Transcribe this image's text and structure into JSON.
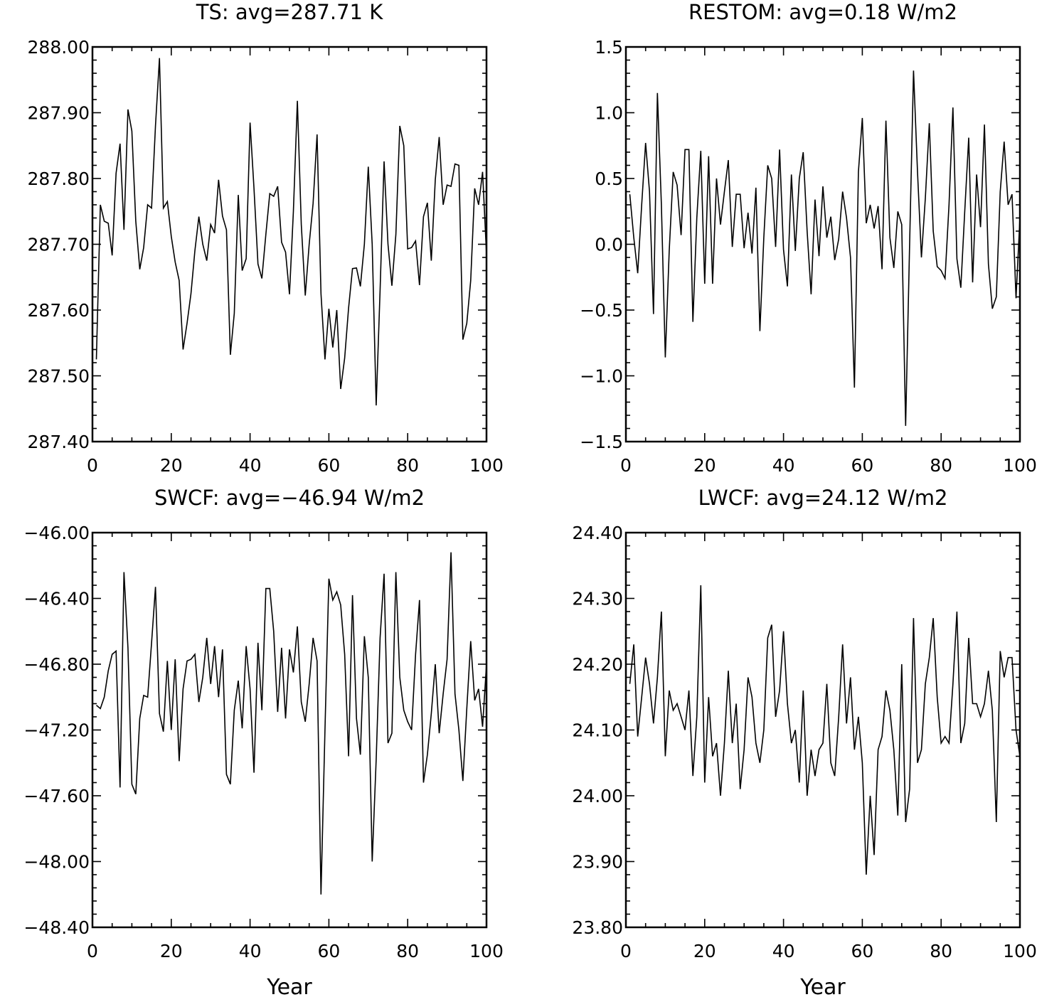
{
  "chart_data": [
    {
      "type": "line",
      "title": "TS: avg=287.71 K",
      "xlabel": "",
      "ylabel": "",
      "xlim": [
        0,
        100
      ],
      "ylim": [
        287.4,
        288.0
      ],
      "xticks": [
        "0",
        "20",
        "40",
        "60",
        "80",
        "100"
      ],
      "yticks": [
        "287.40",
        "287.50",
        "287.60",
        "287.70",
        "287.80",
        "287.90",
        "288.00"
      ],
      "grid": false,
      "line_color": "#000000",
      "x_start": 1,
      "values": [
        287.525,
        287.76,
        287.735,
        287.732,
        287.683,
        287.808,
        287.853,
        287.722,
        287.905,
        287.872,
        287.735,
        287.662,
        287.695,
        287.76,
        287.755,
        287.88,
        287.983,
        287.755,
        287.765,
        287.712,
        287.673,
        287.645,
        287.54,
        287.58,
        287.625,
        287.69,
        287.742,
        287.7,
        287.675,
        287.73,
        287.717,
        287.798,
        287.743,
        287.722,
        287.532,
        287.595,
        287.775,
        287.66,
        287.678,
        287.885,
        287.785,
        287.67,
        287.648,
        287.715,
        287.777,
        287.773,
        287.788,
        287.703,
        287.688,
        287.624,
        287.75,
        287.918,
        287.73,
        287.622,
        287.7,
        287.762,
        287.867,
        287.625,
        287.525,
        287.602,
        287.543,
        287.6,
        287.48,
        287.527,
        287.603,
        287.663,
        287.664,
        287.636,
        287.7,
        287.818,
        287.7,
        287.455,
        287.63,
        287.826,
        287.7,
        287.637,
        287.715,
        287.88,
        287.85,
        287.693,
        287.695,
        287.705,
        287.638,
        287.742,
        287.763,
        287.675,
        287.798,
        287.863,
        287.76,
        287.79,
        287.788,
        287.822,
        287.82,
        287.555,
        287.58,
        287.645,
        287.785,
        287.76,
        287.81,
        287.685
      ]
    },
    {
      "type": "line",
      "title": "RESTOM: avg=0.18 W/m2",
      "xlabel": "",
      "ylabel": "",
      "xlim": [
        0,
        100
      ],
      "ylim": [
        -1.5,
        1.5
      ],
      "xticks": [
        "0",
        "20",
        "40",
        "60",
        "80",
        "100"
      ],
      "yticks": [
        "−1.5",
        "−1.0",
        "−0.5",
        "0.0",
        "0.5",
        "1.0",
        "1.5"
      ],
      "grid": false,
      "line_color": "#000000",
      "x_start": 1,
      "values": [
        0.38,
        0.05,
        -0.22,
        0.3,
        0.77,
        0.4,
        -0.53,
        1.15,
        0.3,
        -0.86,
        -0.05,
        0.55,
        0.45,
        0.07,
        0.72,
        0.72,
        -0.59,
        0.2,
        0.71,
        -0.3,
        0.67,
        -0.3,
        0.5,
        0.15,
        0.4,
        0.64,
        -0.02,
        0.38,
        0.38,
        -0.03,
        0.24,
        -0.07,
        0.43,
        -0.66,
        0.05,
        0.6,
        0.5,
        -0.02,
        0.72,
        -0.04,
        -0.32,
        0.53,
        -0.05,
        0.5,
        0.7,
        0.1,
        -0.38,
        0.34,
        -0.09,
        0.44,
        0.05,
        0.21,
        -0.12,
        0.04,
        0.4,
        0.2,
        -0.1,
        -1.09,
        0.55,
        0.96,
        0.16,
        0.3,
        0.12,
        0.29,
        -0.19,
        0.94,
        0.05,
        -0.18,
        0.25,
        0.15,
        -1.38,
        0.0,
        1.32,
        0.55,
        -0.1,
        0.35,
        0.92,
        0.1,
        -0.17,
        -0.2,
        -0.26,
        0.3,
        1.04,
        -0.11,
        -0.33,
        0.25,
        0.81,
        -0.29,
        0.53,
        0.13,
        0.91,
        -0.15,
        -0.49,
        -0.4,
        0.4,
        0.78,
        0.3,
        0.38,
        -0.41,
        0.2
      ]
    },
    {
      "type": "line",
      "title": "SWCF: avg=−46.94 W/m2",
      "xlabel": "Year",
      "ylabel": "",
      "xlim": [
        0,
        100
      ],
      "ylim": [
        -48.4,
        -46.0
      ],
      "xticks": [
        "0",
        "20",
        "40",
        "60",
        "80",
        "100"
      ],
      "yticks": [
        "−48.40",
        "−48.00",
        "−47.60",
        "−47.20",
        "−46.80",
        "−46.40",
        "−46.00"
      ],
      "grid": false,
      "line_color": "#000000",
      "x_start": 1,
      "values": [
        -47.05,
        -47.07,
        -47.0,
        -46.84,
        -46.74,
        -46.72,
        -47.55,
        -46.24,
        -46.7,
        -47.53,
        -47.59,
        -47.13,
        -46.99,
        -47.0,
        -46.67,
        -46.33,
        -47.1,
        -47.21,
        -46.78,
        -47.2,
        -46.77,
        -47.39,
        -46.95,
        -46.78,
        -46.77,
        -46.74,
        -47.03,
        -46.88,
        -46.64,
        -46.92,
        -46.69,
        -47.0,
        -46.71,
        -47.47,
        -47.53,
        -47.08,
        -46.9,
        -47.19,
        -46.69,
        -46.95,
        -47.46,
        -46.67,
        -47.08,
        -46.34,
        -46.34,
        -46.6,
        -47.09,
        -46.7,
        -47.13,
        -46.71,
        -46.85,
        -46.57,
        -47.03,
        -47.15,
        -46.92,
        -46.64,
        -46.78,
        -48.2,
        -47.2,
        -46.28,
        -46.41,
        -46.36,
        -46.44,
        -46.74,
        -47.36,
        -46.38,
        -47.13,
        -47.35,
        -46.63,
        -46.88,
        -48.0,
        -47.38,
        -46.64,
        -46.25,
        -47.28,
        -47.22,
        -46.24,
        -46.88,
        -47.08,
        -47.15,
        -47.2,
        -46.74,
        -46.41,
        -47.52,
        -47.35,
        -47.1,
        -46.8,
        -47.22,
        -46.98,
        -46.77,
        -46.12,
        -46.98,
        -47.2,
        -47.51,
        -47.07,
        -46.66,
        -47.02,
        -46.95,
        -47.18,
        -46.8
      ]
    },
    {
      "type": "line",
      "title": "LWCF: avg=24.12 W/m2",
      "xlabel": "Year",
      "ylabel": "",
      "xlim": [
        0,
        100
      ],
      "ylim": [
        23.8,
        24.4
      ],
      "xticks": [
        "0",
        "20",
        "40",
        "60",
        "80",
        "100"
      ],
      "yticks": [
        "23.80",
        "23.90",
        "24.00",
        "24.10",
        "24.20",
        "24.30",
        "24.40"
      ],
      "grid": false,
      "line_color": "#000000",
      "x_start": 1,
      "values": [
        24.17,
        24.23,
        24.09,
        24.15,
        24.21,
        24.17,
        24.11,
        24.18,
        24.28,
        24.06,
        24.16,
        24.13,
        24.14,
        24.12,
        24.1,
        24.16,
        24.03,
        24.12,
        24.32,
        24.02,
        24.15,
        24.06,
        24.08,
        24.0,
        24.08,
        24.19,
        24.08,
        24.14,
        24.01,
        24.07,
        24.18,
        24.15,
        24.08,
        24.05,
        24.1,
        24.24,
        24.26,
        24.12,
        24.16,
        24.25,
        24.14,
        24.08,
        24.1,
        24.02,
        24.16,
        24.0,
        24.07,
        24.03,
        24.07,
        24.08,
        24.17,
        24.05,
        24.03,
        24.12,
        24.23,
        24.11,
        24.18,
        24.07,
        24.12,
        24.05,
        23.88,
        24.0,
        23.91,
        24.07,
        24.09,
        24.16,
        24.13,
        24.07,
        23.97,
        24.2,
        23.96,
        24.01,
        24.27,
        24.05,
        24.07,
        24.17,
        24.21,
        24.27,
        24.15,
        24.08,
        24.09,
        24.08,
        24.17,
        24.28,
        24.08,
        24.11,
        24.24,
        24.14,
        24.14,
        24.12,
        24.14,
        24.19,
        24.13,
        23.96,
        24.22,
        24.18,
        24.21,
        24.21,
        24.1,
        24.06
      ]
    }
  ]
}
